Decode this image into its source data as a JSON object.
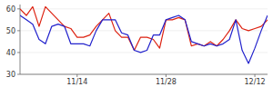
{
  "chart_data": {
    "type": "line",
    "categories": [
      null,
      null,
      null,
      null,
      null,
      null,
      null,
      null,
      null,
      "11/14",
      null,
      null,
      null,
      null,
      null,
      null,
      null,
      null,
      null,
      null,
      null,
      null,
      null,
      "11/28",
      null,
      null,
      null,
      null,
      null,
      null,
      null,
      null,
      null,
      null,
      null,
      null,
      null,
      "12/12",
      null,
      null
    ],
    "series": [
      {
        "color": "#dd2211",
        "values": [
          60,
          57,
          61,
          52,
          61,
          58,
          55,
          52,
          51,
          47,
          47,
          48,
          52,
          55,
          58,
          50,
          47,
          47,
          41,
          47,
          47,
          46,
          42,
          55,
          55,
          56,
          55,
          43,
          44,
          43,
          45,
          43,
          46,
          50,
          55,
          51,
          50,
          51,
          52,
          55
        ]
      },
      {
        "color": "#2222cc",
        "values": [
          57,
          55,
          53,
          46,
          44,
          52,
          53,
          52,
          44,
          44,
          44,
          43,
          50,
          55,
          55,
          55,
          49,
          48,
          41,
          40,
          41,
          48,
          48,
          55,
          56,
          57,
          55,
          45,
          44,
          43,
          44,
          43,
          44,
          46,
          55,
          41,
          35,
          42,
          50,
          57
        ]
      }
    ],
    "ylim": [
      30,
      62
    ],
    "yticks": [
      30,
      40,
      50,
      60
    ]
  }
}
